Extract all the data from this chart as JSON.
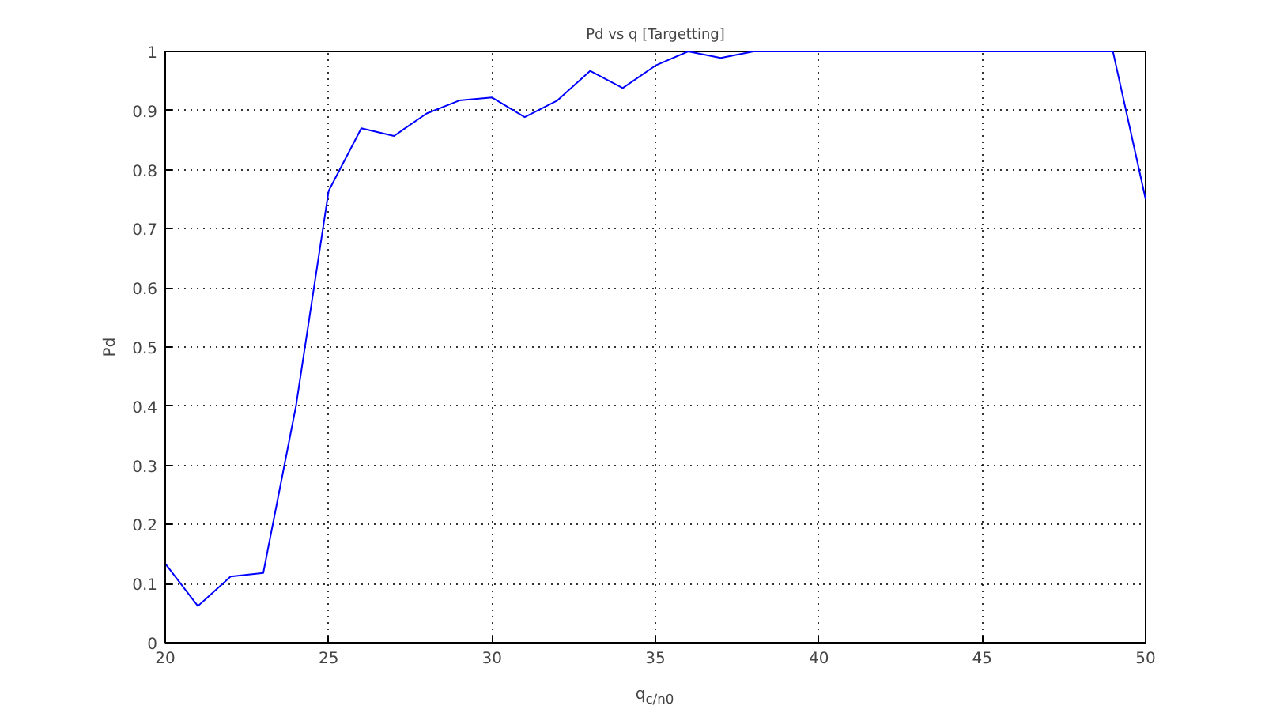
{
  "chart_data": {
    "type": "line",
    "title": "Pd vs q [Targetting]",
    "xlabel": "q$_{c/n0}$",
    "ylabel": "Pd",
    "x": [
      20,
      21,
      22,
      23,
      24,
      25,
      26,
      27,
      28,
      29,
      30,
      31,
      32,
      33,
      34,
      35,
      36,
      37,
      38,
      39,
      40,
      41,
      42,
      43,
      44,
      45,
      46,
      47,
      48,
      49,
      50
    ],
    "series": [
      {
        "color": "#0000ff",
        "values": [
          0.134,
          0.062,
          0.112,
          0.118,
          0.4,
          0.764,
          0.87,
          0.857,
          0.895,
          0.917,
          0.922,
          0.889,
          0.917,
          0.967,
          0.938,
          0.976,
          1.0,
          0.989,
          1.0,
          1.0,
          1.0,
          1.0,
          1.0,
          1.0,
          1.0,
          1.0,
          1.0,
          1.0,
          1.0,
          1.0,
          0.75
        ]
      }
    ],
    "xlim": [
      20,
      50
    ],
    "ylim": [
      0,
      1
    ],
    "xticks": [
      20,
      25,
      30,
      35,
      40,
      45,
      50
    ],
    "yticks": [
      0,
      0.1,
      0.2,
      0.3,
      0.4,
      0.5,
      0.6,
      0.7,
      0.8,
      0.9,
      1
    ],
    "grid": true,
    "line_style": "solid",
    "marker": "none"
  }
}
